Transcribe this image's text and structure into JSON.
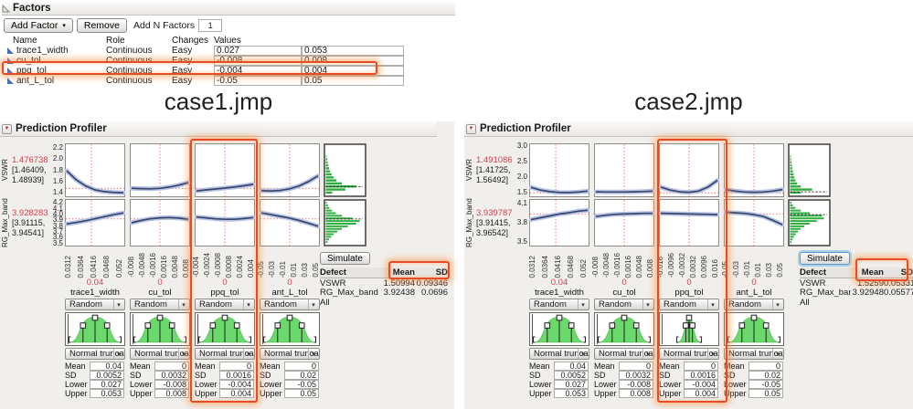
{
  "factors_panel": {
    "title": "Factors",
    "buttons": {
      "add_factor": "Add Factor",
      "remove": "Remove",
      "add_n_factors_label": "Add N Factors",
      "n_factors_value": "1"
    },
    "columns": [
      "Name",
      "Role",
      "Changes",
      "Values"
    ],
    "rows": [
      {
        "name": "trace1_width",
        "role": "Continuous",
        "changes": "Easy",
        "low": "0.027",
        "high": "0.053",
        "highlighted": false
      },
      {
        "name": "cu_tol",
        "role": "Continuous",
        "changes": "Easy",
        "low": "-0.008",
        "high": "0.008",
        "highlighted": false
      },
      {
        "name": "ppq_tol",
        "role": "Continuous",
        "changes": "Easy",
        "low": "-0.004",
        "high": "0.004",
        "highlighted": true
      },
      {
        "name": "ant_L_tol",
        "role": "Continuous",
        "changes": "Easy",
        "low": "-0.05",
        "high": "0.05",
        "highlighted": false
      }
    ]
  },
  "annotation_color": "#e84b28",
  "field_labels": [
    "Mean",
    "SD",
    "Lower",
    "Upper"
  ],
  "cases": [
    {
      "title": "case1.jmp",
      "panel_title": "Prediction Profiler",
      "simulate_label": "Simulate",
      "simulate_focused": false,
      "responses": [
        {
          "name": "VSWR",
          "value": "1.476738",
          "ci_line1": "[1.46409,",
          "ci_line2": "1.48939]",
          "tick_labels": [
            "2.2",
            "2.0",
            "1.8",
            "1.6",
            "1.4"
          ],
          "range": [
            1.32,
            2.28
          ],
          "mean": 1.476738,
          "sim_mean": 1.50994,
          "hist": [
            0,
            0,
            0,
            0.02,
            0.04,
            0.05,
            0.07,
            0.09,
            0.12,
            0.16,
            0.22,
            0.3,
            0.45,
            0.85,
            0.55,
            0.18
          ]
        },
        {
          "name": "RG_Max_band",
          "value": "3.928283",
          "ci_line1": "[3.91115,",
          "ci_line2": "3.94541]",
          "tick_labels": [
            "4.2",
            "4.1",
            "4.0",
            "3.9",
            "3.8",
            "3.7",
            "3.6",
            "3.5"
          ],
          "range": [
            3.45,
            4.27
          ],
          "mean": 3.928283,
          "sim_mean": 3.92438,
          "hist": [
            0.03,
            0.06,
            0.1,
            0.17,
            0.28,
            0.45,
            0.75,
            0.95,
            0.85,
            0.62,
            0.45,
            0.32,
            0.22,
            0.15,
            0.09,
            0.05
          ]
        }
      ],
      "factors": [
        {
          "name": "trace1_width",
          "current": "0.04",
          "vline": 0.44,
          "highlighted": false,
          "axis_ticks": [
            "0.0312",
            "0.0364",
            "0.0416",
            "0.0468",
            "0.052"
          ],
          "random_label": "Random",
          "dist_label": "Normal trunca",
          "dist_shape": "normal",
          "fields": [
            "0.04",
            "0.0052",
            "0.027",
            "0.053"
          ],
          "curves": [
            [
              1.79,
              1.63,
              1.52,
              1.45,
              1.42,
              1.405,
              1.4
            ],
            [
              3.84,
              3.865,
              3.895,
              3.93,
              3.965,
              4.0,
              4.03
            ]
          ]
        },
        {
          "name": "cu_tol",
          "current": "0",
          "vline": 0.5,
          "highlighted": false,
          "axis_ticks": [
            "-0.008",
            "-0.0048",
            "-0.0016",
            "0.0016",
            "0.0048",
            "0.008"
          ],
          "random_label": "Random",
          "dist_label": "Normal trunca",
          "dist_shape": "normal",
          "fields": [
            "0",
            "0.0032",
            "-0.008",
            "0.008"
          ],
          "curves": [
            [
              1.48,
              1.473,
              1.47,
              1.478,
              1.5,
              1.535,
              1.58
            ],
            [
              3.86,
              3.9,
              3.93,
              3.945,
              3.95,
              3.94,
              3.92
            ]
          ]
        },
        {
          "name": "ppq_tol",
          "current": "0",
          "vline": 0.5,
          "highlighted": true,
          "axis_ticks": [
            "-0.004",
            "-0.0024",
            "-0.0008",
            "0.0008",
            "0.0024",
            "0.004"
          ],
          "random_label": "Random",
          "dist_label": "Normal trunca",
          "dist_shape": "normal",
          "fields": [
            "0",
            "0.0016",
            "-0.004",
            "0.004"
          ],
          "curves": [
            [
              1.43,
              1.45,
              1.467,
              1.483,
              1.5,
              1.523,
              1.55
            ],
            [
              3.96,
              3.945,
              3.928,
              3.92,
              3.92,
              3.932,
              3.95
            ]
          ]
        },
        {
          "name": "ant_L_tol",
          "current": "0",
          "vline": 0.5,
          "highlighted": false,
          "axis_ticks": [
            "-0.05",
            "-0.03",
            "-0.01",
            "0.01",
            "0.03",
            "0.05"
          ],
          "random_label": "Random",
          "dist_label": "Normal trunca",
          "dist_shape": "normal",
          "fields": [
            "0",
            "0.02",
            "-0.05",
            "0.05"
          ],
          "curves": [
            [
              1.435,
              1.43,
              1.44,
              1.47,
              1.52,
              1.6,
              1.7
            ],
            [
              4.03,
              4.0,
              3.97,
              3.94,
              3.9,
              3.85,
              3.8
            ]
          ]
        }
      ],
      "defect_table": {
        "columns": [
          "Defect",
          "Mean",
          "SD"
        ],
        "rows": [
          [
            "VSWR",
            "1.50994",
            "0.09346"
          ],
          [
            "RG_Max_band",
            "3.92438",
            "0.0696"
          ],
          [
            "All",
            "",
            ""
          ]
        ]
      }
    },
    {
      "title": "case2.jmp",
      "panel_title": "Prediction Profiler",
      "simulate_label": "Simulate",
      "simulate_focused": true,
      "responses": [
        {
          "name": "VSWR",
          "value": "1.491086",
          "ci_line1": "[1.41725,",
          "ci_line2": "1.56492]",
          "tick_labels": [
            "3.0",
            "2.5",
            "2.0",
            "1.5"
          ],
          "range": [
            1.35,
            3.1
          ],
          "mean": 1.491086,
          "sim_mean": 1.5259,
          "hist": [
            0,
            0,
            0,
            0.02,
            0.03,
            0.04,
            0.05,
            0.06,
            0.08,
            0.1,
            0.12,
            0.15,
            0.2,
            0.3,
            0.62,
            0.3
          ]
        },
        {
          "name": "RG_Max_band",
          "value": "3.939787",
          "ci_line1": "[3.91415,",
          "ci_line2": "3.96542]",
          "tick_labels": [
            "4.1",
            "3.8",
            "3.5"
          ],
          "range": [
            3.42,
            4.18
          ],
          "mean": 3.939787,
          "sim_mean": 3.92948,
          "hist": [
            0.04,
            0.08,
            0.15,
            0.3,
            0.55,
            0.9,
            0.95,
            0.75,
            0.55,
            0.4,
            0.3,
            0.22,
            0.16,
            0.11,
            0.07,
            0.04
          ]
        }
      ],
      "factors": [
        {
          "name": "trace1_width",
          "current": "0.04",
          "vline": 0.44,
          "highlighted": false,
          "axis_ticks": [
            "0.0312",
            "0.0364",
            "0.0416",
            "0.0468",
            "0.052"
          ],
          "random_label": "Random",
          "dist_label": "Normal trunca",
          "dist_shape": "normal",
          "fields": [
            "0.04",
            "0.0052",
            "0.027",
            "0.053"
          ],
          "curves": [
            [
              1.67,
              1.58,
              1.53,
              1.505,
              1.5,
              1.515,
              1.55
            ],
            [
              3.85,
              3.88,
              3.91,
              3.94,
              3.96,
              3.985,
              4.0
            ]
          ]
        },
        {
          "name": "cu_tol",
          "current": "0",
          "vline": 0.5,
          "highlighted": false,
          "axis_ticks": [
            "-0.008",
            "-0.0048",
            "-0.0016",
            "0.0016",
            "0.0048",
            "0.008"
          ],
          "random_label": "Random",
          "dist_label": "Normal trunca",
          "dist_shape": "normal",
          "fields": [
            "0",
            "0.0032",
            "-0.008",
            "0.008"
          ],
          "curves": [
            [
              1.525,
              1.52,
              1.518,
              1.52,
              1.525,
              1.535,
              1.55
            ],
            [
              3.9,
              3.92,
              3.935,
              3.94,
              3.945,
              3.95,
              3.95
            ]
          ]
        },
        {
          "name": "ppq_tol",
          "current": "0",
          "vline": 0.5,
          "highlighted": true,
          "axis_ticks": [
            "-0.016",
            "-0.0096",
            "-0.0032",
            "0.0032",
            "0.0096",
            "0.016"
          ],
          "random_label": "Random",
          "dist_label": "Normal trunca",
          "dist_shape": "narrow",
          "fields": [
            "0",
            "0.0016",
            "-0.004",
            "0.004"
          ],
          "curves": [
            [
              1.68,
              1.58,
              1.525,
              1.51,
              1.55,
              1.68,
              1.9
            ],
            [
              3.952,
              3.948,
              3.945,
              3.94,
              3.938,
              3.935,
              3.93
            ]
          ]
        },
        {
          "name": "ant_L_tol",
          "current": "0",
          "vline": 0.5,
          "highlighted": false,
          "axis_ticks": [
            "-0.05",
            "-0.03",
            "-0.01",
            "0.01",
            "0.03",
            "0.05"
          ],
          "random_label": "Random",
          "dist_label": "Normal truncat",
          "dist_shape": "normal",
          "fields": [
            "0",
            "0.02",
            "-0.05",
            "0.05"
          ],
          "curves": [
            [
              1.6,
              1.55,
              1.52,
              1.51,
              1.52,
              1.55,
              1.6
            ],
            [
              3.97,
              3.96,
              3.95,
              3.93,
              3.9,
              3.84,
              3.77
            ]
          ]
        }
      ],
      "defect_table": {
        "columns": [
          "Defect",
          "Mean",
          "SD"
        ],
        "rows": [
          [
            "VSWR",
            "1.5259",
            "0.05331"
          ],
          [
            "RG_Max_band",
            "3.92948",
            "0.05577"
          ],
          [
            "All",
            "",
            ""
          ]
        ]
      }
    }
  ]
}
